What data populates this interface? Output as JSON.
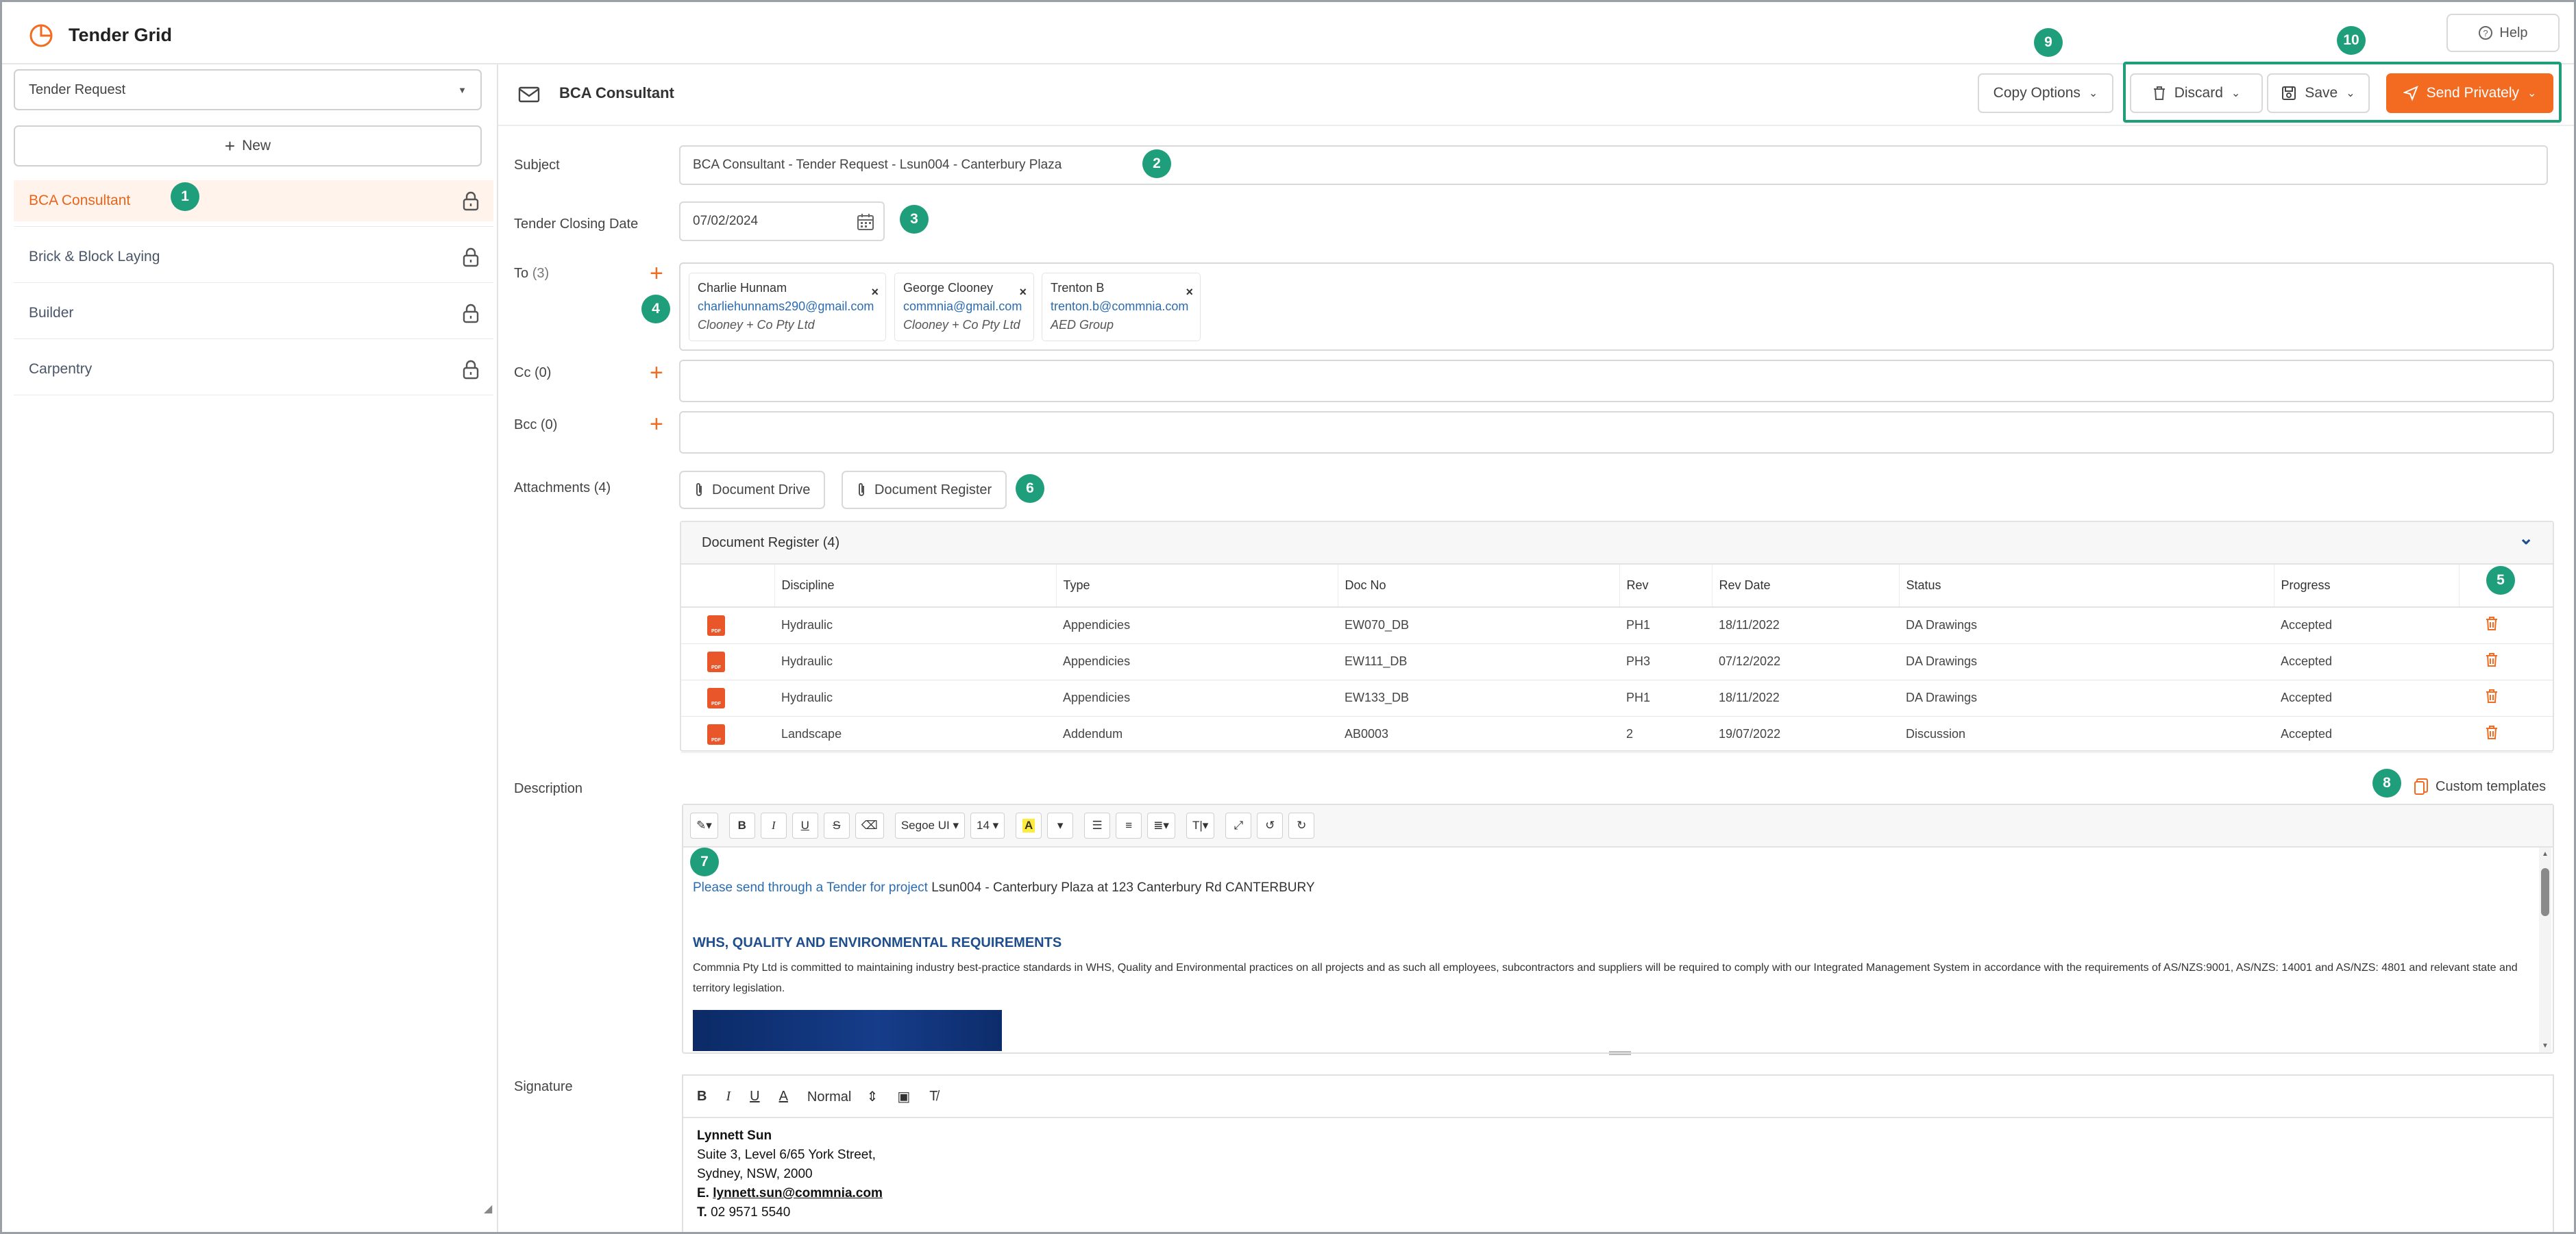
{
  "app": {
    "title": "Tender Grid",
    "help_label": "Help"
  },
  "sidebar": {
    "selector_value": "Tender Request",
    "new_label": "New",
    "items": [
      {
        "label": "BCA Consultant",
        "active": true
      },
      {
        "label": "Brick & Block Laying",
        "active": false
      },
      {
        "label": "Builder",
        "active": false
      },
      {
        "label": "Carpentry",
        "active": false
      }
    ]
  },
  "header": {
    "title": "BCA Consultant",
    "copy_options_label": "Copy Options",
    "discard_label": "Discard",
    "save_label": "Save",
    "send_label": "Send Privately"
  },
  "form": {
    "subject_label": "Subject",
    "subject_value": "BCA Consultant - Tender Request - Lsun004 - Canterbury Plaza",
    "closing_label": "Tender Closing Date",
    "closing_value": "07/02/2024",
    "to_label": "To",
    "to_count": "(3)",
    "recipients": [
      {
        "name": "Charlie Hunnam",
        "email": "charliehunnams290@gmail.com",
        "company": "Clooney + Co Pty Ltd"
      },
      {
        "name": "George Clooney",
        "email": "commnia@gmail.com",
        "company": "Clooney + Co Pty Ltd"
      },
      {
        "name": "Trenton B",
        "email": "trenton.b@commnia.com",
        "company": "AED Group"
      }
    ],
    "cc_label": "Cc",
    "cc_count": "(0)",
    "bcc_label": "Bcc",
    "bcc_count": "(0)",
    "attachments_label": "Attachments",
    "attachments_count": "(4)",
    "document_drive_label": "Document Drive",
    "document_register_label": "Document Register"
  },
  "register": {
    "title": "Document Register (4)",
    "columns": [
      "Discipline",
      "Type",
      "Doc No",
      "Rev",
      "Rev Date",
      "Status",
      "Progress"
    ],
    "rows": [
      [
        "Hydraulic",
        "Appendicies",
        "EW070_DB",
        "PH1",
        "18/11/2022",
        "DA Drawings",
        "Accepted"
      ],
      [
        "Hydraulic",
        "Appendicies",
        "EW111_DB",
        "PH3",
        "07/12/2022",
        "DA Drawings",
        "Accepted"
      ],
      [
        "Hydraulic",
        "Appendicies",
        "EW133_DB",
        "PH1",
        "18/11/2022",
        "DA Drawings",
        "Accepted"
      ],
      [
        "Landscape",
        "Addendum",
        "AB0003",
        "2",
        "19/07/2022",
        "Discussion",
        "Accepted"
      ]
    ],
    "file_icon_text": "PDF"
  },
  "description": {
    "label": "Description",
    "custom_templates_label": "Custom templates",
    "font_name": "Segoe UI",
    "font_size": "14",
    "intro_link": "Please send through a Tender for project",
    "intro_rest": " Lsun004 - Canterbury Plaza at 123 Canterbury Rd CANTERBURY",
    "heading": "WHS, QUALITY AND ENVIRONMENTAL REQUIREMENTS",
    "body": "Commnia Pty Ltd is committed to maintaining industry best-practice standards in WHS, Quality and Environmental practices on all projects and as such all employees, subcontractors and suppliers will be required to comply with our Integrated Management System in accordance with the requirements of AS/NZS:9001, AS/NZS: 14001 and AS/NZS: 4801 and relevant state and territory legislation."
  },
  "signature": {
    "label": "Signature",
    "style_value": "Normal",
    "name": "Lynnett Sun",
    "address1": "Suite 3, Level 6/65 York Street,",
    "address2": "Sydney, NSW, 2000",
    "email_prefix": "E.",
    "email": "lynnett.sun@commnia.com",
    "phone_prefix": "T.",
    "phone": "02 9571 5540"
  },
  "badges": [
    "1",
    "2",
    "3",
    "4",
    "5",
    "6",
    "7",
    "8",
    "9",
    "10"
  ],
  "colors": {
    "accent": "#f26b21",
    "badge": "#1e9e7a",
    "link": "#2b6cb0",
    "heading": "#1f4e8c"
  }
}
